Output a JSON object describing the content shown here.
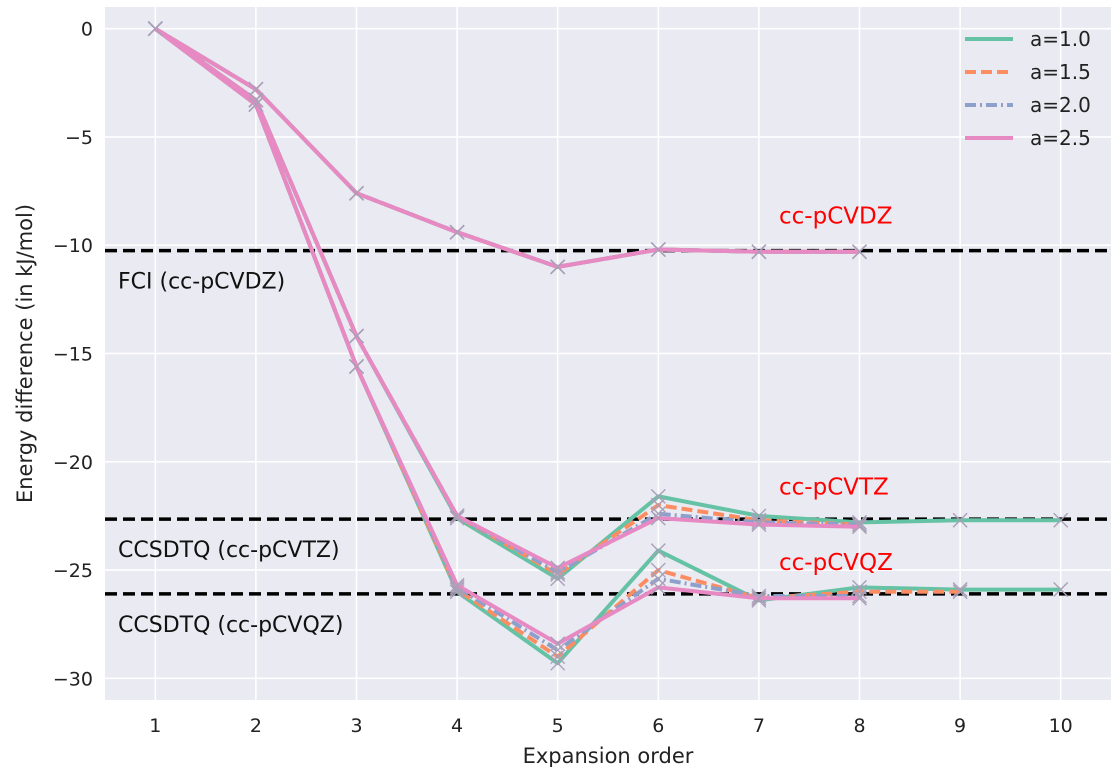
{
  "chart_data": {
    "type": "line",
    "xlabel": "Expansion order",
    "ylabel": "Energy difference (in kJ/mol)",
    "xlim": [
      0.5,
      10.5
    ],
    "ylim": [
      -31.0,
      1.0
    ],
    "xticks": [
      1,
      2,
      3,
      4,
      5,
      6,
      7,
      8,
      9,
      10
    ],
    "yticks": [
      0,
      -5,
      -10,
      -15,
      -20,
      -25,
      -30
    ],
    "ytick_labels": [
      "0",
      "−5",
      "−10",
      "−15",
      "−20",
      "−25",
      "−30"
    ],
    "grid": true,
    "legend_position": "top-right",
    "series": [
      {
        "name": "a=1.0",
        "color": "#66c2a5",
        "dash": "solid",
        "curves": [
          {
            "x": [
              1,
              2,
              3,
              4,
              5,
              6,
              7,
              8
            ],
            "y": [
              0,
              -2.8,
              -7.6,
              -9.4,
              -11.0,
              -10.2,
              -10.3,
              -10.3
            ]
          },
          {
            "x": [
              1,
              2,
              3,
              4,
              5,
              6,
              7,
              8,
              9,
              10
            ],
            "y": [
              0,
              -3.3,
              -14.2,
              -22.6,
              -25.4,
              -21.6,
              -22.5,
              -22.8,
              -22.7,
              -22.7
            ]
          },
          {
            "x": [
              1,
              2,
              3,
              4,
              5,
              6,
              7,
              8,
              9,
              10
            ],
            "y": [
              0,
              -3.5,
              -15.6,
              -26.0,
              -29.3,
              -24.1,
              -26.4,
              -25.8,
              -25.9,
              -25.9
            ]
          }
        ]
      },
      {
        "name": "a=1.5",
        "color": "#fc8d62",
        "dash": "dashed",
        "curves": [
          {
            "x": [
              1,
              2,
              3,
              4,
              5,
              6,
              7,
              8
            ],
            "y": [
              0,
              -2.8,
              -7.6,
              -9.4,
              -11.0,
              -10.2,
              -10.3,
              -10.3
            ]
          },
          {
            "x": [
              1,
              2,
              3,
              4,
              5,
              6,
              7,
              8
            ],
            "y": [
              0,
              -3.3,
              -14.2,
              -22.5,
              -25.2,
              -22.0,
              -22.7,
              -22.9
            ]
          },
          {
            "x": [
              1,
              2,
              3,
              4,
              5,
              6,
              7,
              8,
              9
            ],
            "y": [
              0,
              -3.5,
              -15.6,
              -25.9,
              -29.0,
              -25.0,
              -26.3,
              -26.0,
              -26.0
            ]
          }
        ]
      },
      {
        "name": "a=2.0",
        "color": "#8da0cb",
        "dash": "dashdot",
        "curves": [
          {
            "x": [
              1,
              2,
              3,
              4,
              5,
              6,
              7,
              8
            ],
            "y": [
              0,
              -2.8,
              -7.6,
              -9.4,
              -11.0,
              -10.2,
              -10.3,
              -10.3
            ]
          },
          {
            "x": [
              1,
              2,
              3,
              4,
              5,
              6,
              7,
              8
            ],
            "y": [
              0,
              -3.3,
              -14.2,
              -22.5,
              -25.1,
              -22.4,
              -22.8,
              -22.9
            ]
          },
          {
            "x": [
              1,
              2,
              3,
              4,
              5,
              6,
              7,
              8
            ],
            "y": [
              0,
              -3.5,
              -15.6,
              -25.8,
              -28.7,
              -25.4,
              -26.2,
              -26.2
            ]
          }
        ]
      },
      {
        "name": "a=2.5",
        "color": "#e78ac3",
        "dash": "solid",
        "curves": [
          {
            "x": [
              1,
              2,
              3,
              4,
              5,
              6,
              7,
              8
            ],
            "y": [
              0,
              -2.8,
              -7.6,
              -9.4,
              -11.0,
              -10.2,
              -10.3,
              -10.3
            ]
          },
          {
            "x": [
              1,
              2,
              3,
              4,
              5,
              6,
              7,
              8
            ],
            "y": [
              0,
              -3.3,
              -14.2,
              -22.5,
              -24.9,
              -22.6,
              -22.9,
              -23.0
            ]
          },
          {
            "x": [
              1,
              2,
              3,
              4,
              5,
              6,
              7,
              8
            ],
            "y": [
              0,
              -3.5,
              -15.6,
              -25.7,
              -28.4,
              -25.8,
              -26.3,
              -26.3
            ]
          }
        ]
      }
    ],
    "reference_lines": [
      {
        "y": -10.25,
        "label": "FCI (cc-pCVDZ)",
        "color": "#000000",
        "dash": "dashed"
      },
      {
        "y": -22.65,
        "label": "CCSDTQ (cc-pCVTZ)",
        "color": "#000000",
        "dash": "dashed"
      },
      {
        "y": -26.1,
        "label": "CCSDTQ (cc-pCVQZ)",
        "color": "#000000",
        "dash": "dashed"
      }
    ],
    "annotations": [
      {
        "text": "cc-pCVDZ",
        "x": 7.2,
        "y": -9.0,
        "color": "#ff0000"
      },
      {
        "text": "cc-pCVTZ",
        "x": 7.2,
        "y": -21.5,
        "color": "#ff0000"
      },
      {
        "text": "cc-pCVQZ",
        "x": 7.2,
        "y": -25.0,
        "color": "#ff0000"
      }
    ],
    "marker": "x"
  }
}
